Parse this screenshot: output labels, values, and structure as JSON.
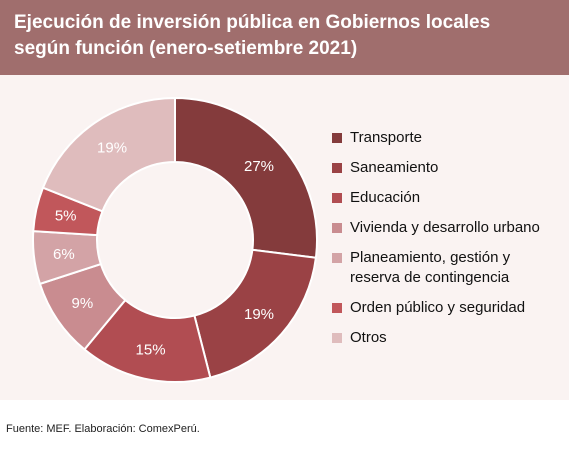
{
  "chart_data": {
    "type": "donut",
    "title": [
      "Ejecución de inversión pública en Gobiernos locales",
      "según función (enero-setiembre 2021)"
    ],
    "categories": [
      "Transporte",
      "Saneamiento",
      "Educación",
      "Vivienda y desarrollo urbano",
      "Planeamiento, gestión y reserva de contingencia",
      "Orden público y seguridad",
      "Otros"
    ],
    "values": [
      27,
      19,
      15,
      9,
      6,
      5,
      19
    ],
    "value_labels": [
      "27%",
      "19%",
      "15%",
      "9%",
      "6%",
      "5%",
      "19%"
    ],
    "colors": [
      "#843b3c",
      "#9a4245",
      "#b14d52",
      "#c98c90",
      "#d3a3a6",
      "#c1575b",
      "#dfbcbd"
    ],
    "legend": "right",
    "source": "Fuente: MEF. Elaboración: ComexPerú."
  }
}
